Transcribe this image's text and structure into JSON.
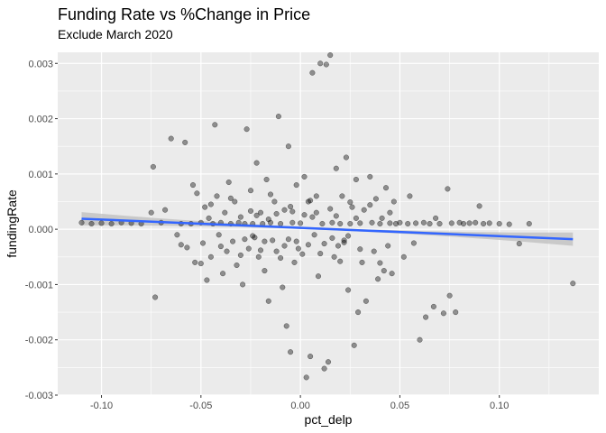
{
  "chart_data": {
    "type": "scatter",
    "title": "Funding Rate vs %Change in Price",
    "subtitle": "Exclude March 2020",
    "xlabel": "pct_delp",
    "ylabel": "fundingRate",
    "xlim": [
      -0.122,
      0.15
    ],
    "ylim": [
      -0.003,
      0.0032
    ],
    "x_ticks": [
      -0.1,
      -0.05,
      0.0,
      0.05,
      0.1
    ],
    "x_tick_labels": [
      "-0.10",
      "-0.05",
      "0.00",
      "0.05",
      "0.10"
    ],
    "y_ticks": [
      -0.003,
      -0.002,
      -0.001,
      0.0,
      0.001,
      0.002,
      0.003
    ],
    "y_tick_labels": [
      "-0.003",
      "-0.002",
      "-0.001",
      "0.000",
      "0.001",
      "0.002",
      "0.003"
    ],
    "grid": true,
    "legend": "none",
    "colors": {
      "panel": "#ebebeb",
      "grid": "#ffffff",
      "point": "#000000",
      "trend_line": "#3366ff",
      "confidence_band": "#bdbdbd"
    },
    "trend_line": {
      "x": [
        -0.11,
        0.137
      ],
      "y": [
        0.00019,
        -0.00018
      ],
      "ci_halfwidth_ends": 0.00012,
      "ci_halfwidth_mid": 2e-05
    },
    "points": [
      [
        -0.11,
        0.00012
      ],
      [
        -0.105,
        0.0001
      ],
      [
        -0.1,
        0.00011
      ],
      [
        -0.095,
        0.0001
      ],
      [
        -0.09,
        0.00012
      ],
      [
        -0.085,
        0.00011
      ],
      [
        -0.08,
        0.0001
      ],
      [
        -0.075,
        0.0003
      ],
      [
        -0.074,
        0.00113
      ],
      [
        -0.073,
        -0.00123
      ],
      [
        -0.07,
        0.00012
      ],
      [
        -0.068,
        0.00035
      ],
      [
        -0.065,
        0.00164
      ],
      [
        -0.062,
        -0.0001
      ],
      [
        -0.06,
        0.0001
      ],
      [
        -0.058,
        0.00157
      ],
      [
        -0.057,
        -0.00033
      ],
      [
        -0.055,
        0.0001
      ],
      [
        -0.054,
        0.0008
      ],
      [
        -0.053,
        -0.0006
      ],
      [
        -0.052,
        0.00065
      ],
      [
        -0.05,
        0.00012
      ],
      [
        -0.049,
        -0.00025
      ],
      [
        -0.048,
        0.0004
      ],
      [
        -0.047,
        -0.00092
      ],
      [
        -0.046,
        0.0002
      ],
      [
        -0.045,
        -0.0005
      ],
      [
        -0.044,
        0.0001
      ],
      [
        -0.043,
        0.00189
      ],
      [
        -0.042,
        0.0006
      ],
      [
        -0.041,
        -0.0001
      ],
      [
        -0.04,
        0.00012
      ],
      [
        -0.039,
        -0.0008
      ],
      [
        -0.038,
        0.0003
      ],
      [
        -0.037,
        -0.0004
      ],
      [
        -0.036,
        0.00085
      ],
      [
        -0.035,
        0.0001
      ],
      [
        -0.034,
        -0.00022
      ],
      [
        -0.033,
        0.0005
      ],
      [
        -0.032,
        -0.00065
      ],
      [
        -0.031,
        0.00012
      ],
      [
        -0.03,
        0.00022
      ],
      [
        -0.029,
        -0.001
      ],
      [
        -0.028,
        0.0001
      ],
      [
        -0.027,
        0.00181
      ],
      [
        -0.026,
        -0.00035
      ],
      [
        -0.025,
        0.0007
      ],
      [
        -0.024,
        0.0001
      ],
      [
        -0.023,
        -0.00015
      ],
      [
        -0.022,
        0.0012
      ],
      [
        -0.021,
        -0.0005
      ],
      [
        -0.02,
        0.0003
      ],
      [
        -0.019,
        0.0001
      ],
      [
        -0.018,
        -0.00075
      ],
      [
        -0.017,
        0.0009
      ],
      [
        -0.016,
        -0.0013
      ],
      [
        -0.015,
        0.00012
      ],
      [
        -0.014,
        -0.0002
      ],
      [
        -0.013,
        0.0005
      ],
      [
        -0.012,
        -0.0004
      ],
      [
        -0.011,
        0.00204
      ],
      [
        -0.01,
        0.0001
      ],
      [
        -0.009,
        -0.00105
      ],
      [
        -0.008,
        0.00035
      ],
      [
        -0.007,
        -0.00175
      ],
      [
        -0.006,
        0.0015
      ],
      [
        -0.005,
        -0.00222
      ],
      [
        -0.004,
        0.00012
      ],
      [
        -0.003,
        -0.0006
      ],
      [
        -0.002,
        0.0008
      ],
      [
        -0.001,
        -0.00035
      ],
      [
        0.0,
        0.00011
      ],
      [
        0.001,
        -0.00045
      ],
      [
        0.002,
        0.00095
      ],
      [
        0.003,
        -0.00268
      ],
      [
        0.004,
        0.0005
      ],
      [
        0.005,
        -0.0023
      ],
      [
        0.006,
        0.00283
      ],
      [
        0.007,
        -0.0001
      ],
      [
        0.008,
        0.0006
      ],
      [
        0.009,
        -0.00085
      ],
      [
        0.01,
        0.003
      ],
      [
        0.011,
        0.0001
      ],
      [
        0.012,
        -0.00252
      ],
      [
        0.013,
        0.00298
      ],
      [
        0.014,
        -0.0024
      ],
      [
        0.015,
        0.00315
      ],
      [
        0.016,
        0.00012
      ],
      [
        0.017,
        -0.0005
      ],
      [
        0.018,
        0.0011
      ],
      [
        0.019,
        -0.0003
      ],
      [
        0.02,
        0.0001
      ],
      [
        0.021,
        0.0006
      ],
      [
        0.022,
        -0.0002
      ],
      [
        0.023,
        0.0013
      ],
      [
        0.024,
        -0.0011
      ],
      [
        0.025,
        0.0001
      ],
      [
        0.026,
        0.0004
      ],
      [
        0.027,
        -0.0021
      ],
      [
        0.028,
        0.0009
      ],
      [
        0.029,
        -0.0015
      ],
      [
        0.03,
        0.00011
      ],
      [
        0.031,
        -0.0006
      ],
      [
        0.032,
        0.00035
      ],
      [
        0.033,
        -0.0013
      ],
      [
        0.035,
        0.00095
      ],
      [
        0.036,
        0.00012
      ],
      [
        0.037,
        -0.0004
      ],
      [
        0.038,
        0.00055
      ],
      [
        0.039,
        -0.0009
      ],
      [
        0.04,
        0.0001
      ],
      [
        0.041,
        0.0002
      ],
      [
        0.042,
        -0.00075
      ],
      [
        0.043,
        0.00075
      ],
      [
        0.044,
        -0.0003
      ],
      [
        0.045,
        0.00011
      ],
      [
        0.046,
        -0.0008
      ],
      [
        0.047,
        0.0005
      ],
      [
        0.048,
        0.0001
      ],
      [
        0.05,
        0.00012
      ],
      [
        0.052,
        -0.0005
      ],
      [
        0.054,
        0.0001
      ],
      [
        0.055,
        0.0006
      ],
      [
        0.057,
        -0.00025
      ],
      [
        0.058,
        0.00011
      ],
      [
        0.06,
        -0.002
      ],
      [
        0.062,
        0.00012
      ],
      [
        0.063,
        -0.00159
      ],
      [
        0.065,
        0.0001
      ],
      [
        0.067,
        -0.0014
      ],
      [
        0.068,
        0.0002
      ],
      [
        0.07,
        0.0001
      ],
      [
        0.072,
        -0.00152
      ],
      [
        0.074,
        0.00073
      ],
      [
        0.075,
        -0.0012
      ],
      [
        0.076,
        0.00011
      ],
      [
        0.078,
        -0.0015
      ],
      [
        0.08,
        0.00012
      ],
      [
        0.082,
        0.0001
      ],
      [
        0.085,
        0.00011
      ],
      [
        0.088,
        0.00012
      ],
      [
        0.09,
        0.00042
      ],
      [
        0.092,
        0.0001
      ],
      [
        0.095,
        0.00011
      ],
      [
        0.1,
        0.0001
      ],
      [
        0.105,
        9e-05
      ],
      [
        0.11,
        -0.00026
      ],
      [
        0.115,
        0.0001
      ],
      [
        0.137,
        -0.00098
      ],
      [
        -0.06,
        -0.00028
      ],
      [
        -0.05,
        -0.00062
      ],
      [
        -0.045,
        0.00045
      ],
      [
        -0.04,
        -0.00031
      ],
      [
        -0.035,
        0.00056
      ],
      [
        -0.03,
        -0.00047
      ],
      [
        -0.025,
        0.00033
      ],
      [
        -0.02,
        -0.00038
      ],
      [
        -0.015,
        0.00063
      ],
      [
        -0.01,
        -0.00052
      ],
      [
        -0.005,
        0.00041
      ],
      [
        0.005,
        0.00052
      ],
      [
        0.01,
        -0.00044
      ],
      [
        0.015,
        0.00037
      ],
      [
        0.02,
        -0.00058
      ],
      [
        0.025,
        0.00049
      ],
      [
        0.03,
        -0.00036
      ],
      [
        0.035,
        0.00044
      ],
      [
        0.04,
        -0.00061
      ],
      [
        0.045,
        0.0003
      ],
      [
        -0.028,
        -0.00018
      ],
      [
        -0.022,
        0.00025
      ],
      [
        -0.018,
        -0.00022
      ],
      [
        -0.012,
        0.00028
      ],
      [
        -0.008,
        -0.0003
      ],
      [
        -0.004,
        0.00032
      ],
      [
        0.004,
        -0.00028
      ],
      [
        0.008,
        0.0003
      ],
      [
        0.012,
        -0.00026
      ],
      [
        0.018,
        0.00024
      ],
      [
        0.022,
        -0.00024
      ],
      [
        0.028,
        0.0002
      ],
      [
        -0.016,
        0.00018
      ],
      [
        -0.006,
        -0.00018
      ],
      [
        0.006,
        0.00022
      ],
      [
        0.016,
        -0.00016
      ],
      [
        -0.024,
        -0.00012
      ],
      [
        0.024,
        -0.00012
      ],
      [
        -0.002,
        -0.00022
      ],
      [
        0.002,
        0.00026
      ]
    ]
  }
}
